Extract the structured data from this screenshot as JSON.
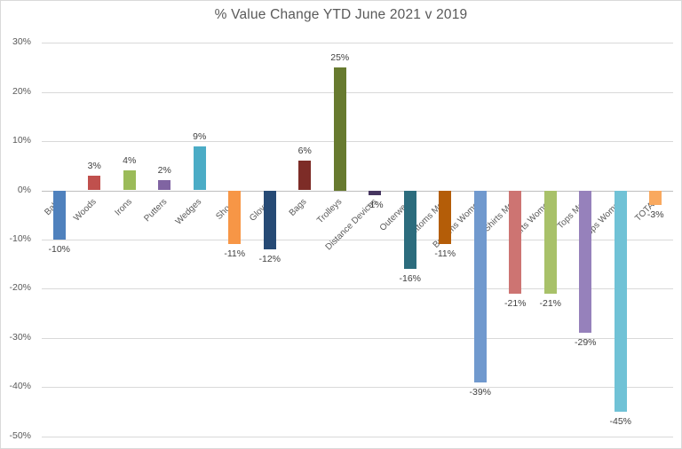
{
  "chart_data": {
    "type": "bar",
    "title": "% Value Change YTD June 2021 v 2019",
    "categories": [
      "Balls",
      "Woods",
      "Irons",
      "Putters",
      "Wedges",
      "Shoes",
      "Gloves",
      "Bags",
      "Trolleys",
      "Distance Devices",
      "Outerwear",
      "Bottoms Men",
      "Bottoms Women",
      "Shirts Men",
      "Shirts Women",
      "Tops Men",
      "Tops Women",
      "TOTAL"
    ],
    "values": [
      -10,
      3,
      4,
      2,
      9,
      -11,
      -12,
      6,
      25,
      -1,
      -16,
      -11,
      -39,
      -21,
      -21,
      -29,
      -45,
      -3
    ],
    "labels": [
      "-10%",
      "3%",
      "4%",
      "2%",
      "9%",
      "-11%",
      "-12%",
      "6%",
      "25%",
      "-1%",
      "-16%",
      "-11%",
      "-39%",
      "-21%",
      "-21%",
      "-29%",
      "-45%",
      "-3%"
    ],
    "bar_colors": [
      "#4F81BD",
      "#C0504D",
      "#9BBB59",
      "#8064A2",
      "#4BACC6",
      "#F79646",
      "#264A75",
      "#7D2C27",
      "#677A2F",
      "#463660",
      "#2C6C7D",
      "#B45D08",
      "#7099CE",
      "#CD7472",
      "#A8C169",
      "#9681BB",
      "#70C2D6",
      "#F9A95F"
    ],
    "xlabel": "",
    "ylabel": "",
    "ylim": [
      -50,
      30
    ],
    "y_ticks": {
      "labels": [
        "30%",
        "20%",
        "10%",
        "0%",
        "-10%",
        "-20%",
        "-30%",
        "-40%",
        "-50%"
      ],
      "values": [
        30,
        20,
        10,
        0,
        -10,
        -20,
        -30,
        -40,
        -50
      ]
    },
    "grid": true,
    "legend": "none",
    "colors": {
      "gridline": "#d9d9d9",
      "axis_line": "#bfbfbf",
      "title_text": "#595959",
      "tick_text": "#595959",
      "value_label_text": "#404040",
      "category_text": "#595959",
      "border": "#d9d9d9",
      "background": "#ffffff"
    }
  }
}
